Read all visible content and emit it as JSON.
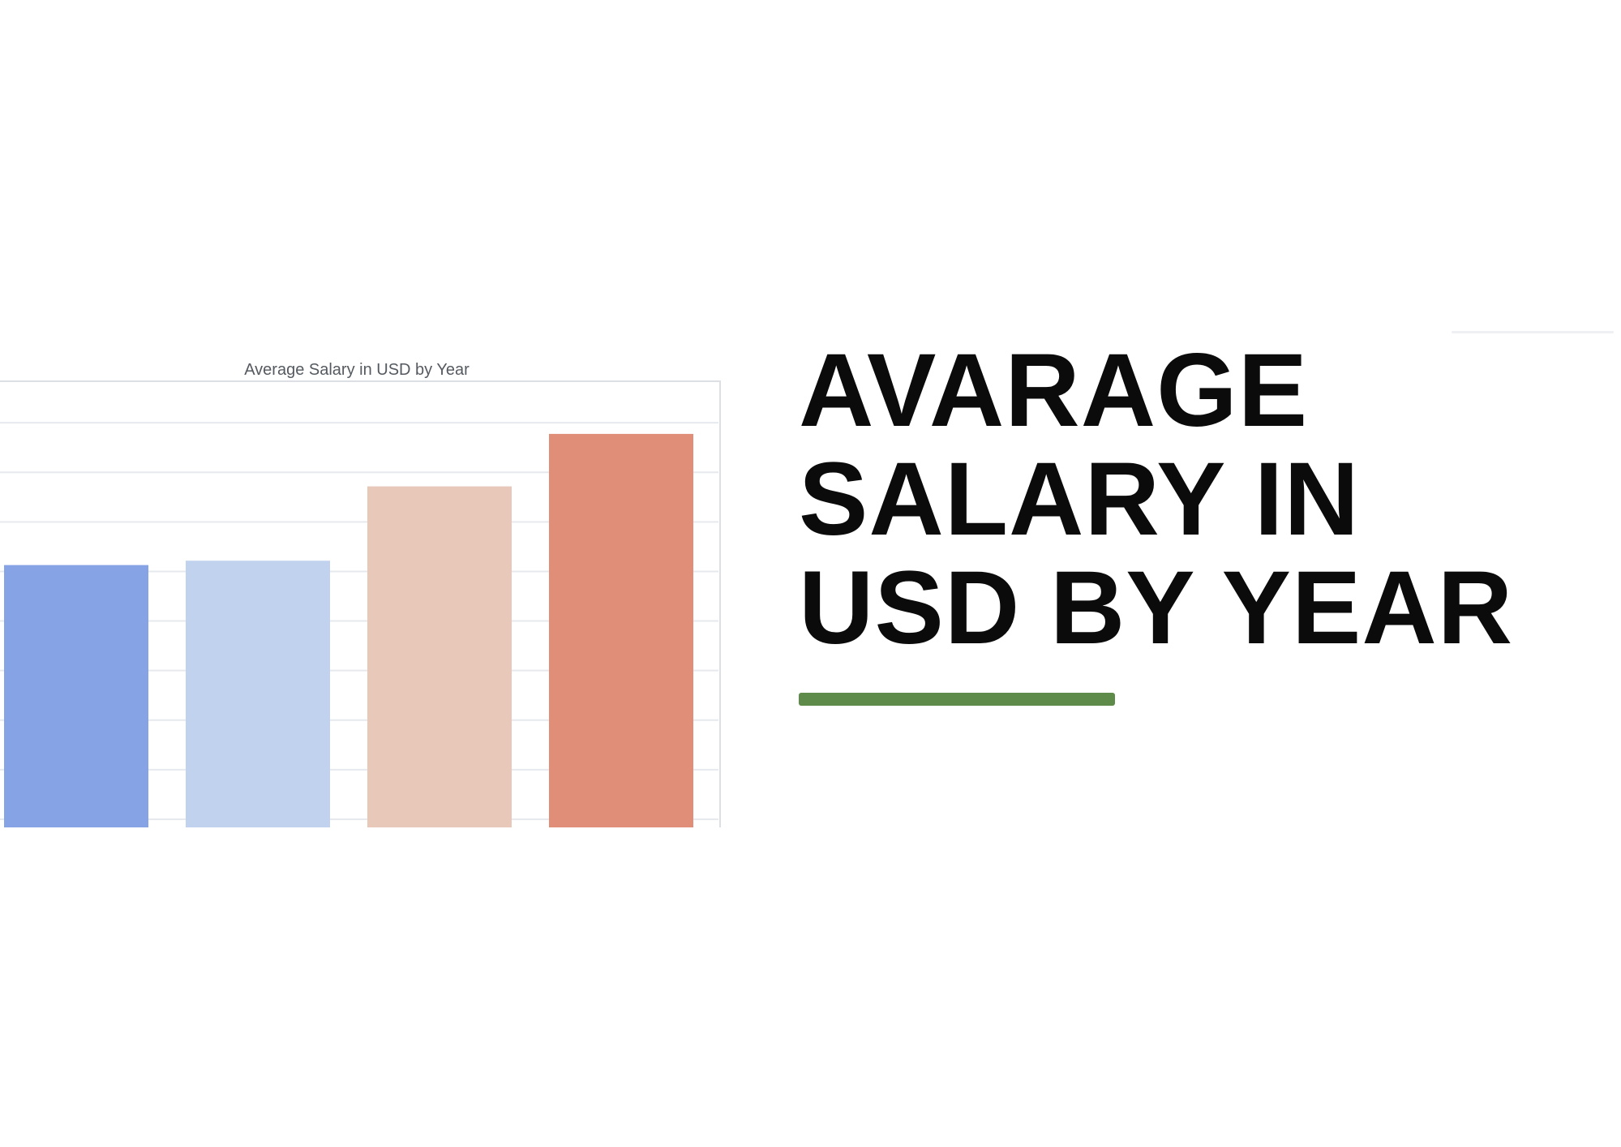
{
  "chart_data": {
    "type": "bar",
    "title": "Average Salary in USD by Year",
    "xlabel": "",
    "ylabel": "",
    "categories": [
      "",
      "",
      "",
      ""
    ],
    "values": [
      0.6,
      0.61,
      0.78,
      0.9
    ],
    "value_scale": "relative",
    "bar_colors": [
      "#86a3e6",
      "#c1d2ee",
      "#e8c9b9",
      "#e08e78"
    ],
    "grid": true,
    "legend": "none"
  },
  "headline": {
    "line1": "AVARAGE",
    "line2": "SALARY IN",
    "line3": "USD BY YEAR"
  },
  "colors": {
    "accent_rule": "#5e8a4a",
    "text": "#0b0b0b",
    "grid": "#e6e9ee",
    "plot_border": "#dcdfe4"
  }
}
